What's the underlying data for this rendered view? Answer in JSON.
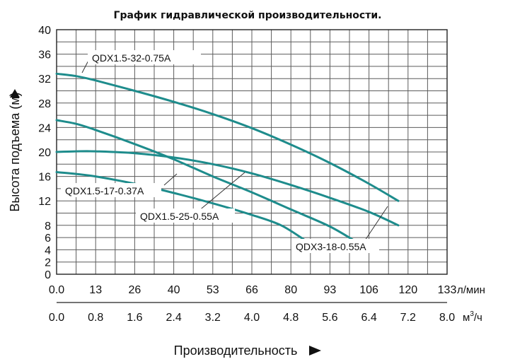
{
  "chart_data": {
    "type": "line",
    "title": "График гидравлической производительности.",
    "ylabel": "Высота подъема (м)",
    "xlabel": "Производительность",
    "ylim": [
      0,
      40
    ],
    "y_ticks": [
      "0",
      "2",
      "4",
      "6",
      "8",
      "12",
      "16",
      "20",
      "24",
      "28",
      "32",
      "36",
      "40"
    ],
    "x_ticks_lmin": [
      "0.0",
      "13",
      "26",
      "40",
      "53",
      "66",
      "80",
      "93",
      "106",
      "120",
      "133"
    ],
    "x_unit_lmin": "л/мин",
    "x_ticks_m3h": [
      "0.0",
      "0.8",
      "1.6",
      "2.4",
      "3.2",
      "4.0",
      "4.8",
      "5.6",
      "6.4",
      "7.2",
      "8.0"
    ],
    "x_unit_m3h": "м³/ч",
    "x_unit_m3h_base": "м",
    "x_unit_m3h_sup": "3",
    "x_unit_m3h_tail": "/ч",
    "xlim_m3h": [
      0,
      8.0
    ],
    "grid": true,
    "series": [
      {
        "name": "QDX1.5-32-0.75A",
        "color": "#1e8c8c",
        "points": [
          [
            0,
            32.8
          ],
          [
            0.4,
            32.4
          ],
          [
            0.8,
            31.7
          ],
          [
            1.6,
            30.0
          ],
          [
            2.4,
            28.2
          ],
          [
            3.2,
            26.2
          ],
          [
            4.0,
            23.9
          ],
          [
            4.8,
            21.2
          ],
          [
            5.6,
            18.2
          ],
          [
            6.4,
            14.8
          ],
          [
            7.0,
            12.0
          ]
        ]
      },
      {
        "name": "QDX1.5-25-0.55A",
        "color": "#1e8c8c",
        "points": [
          [
            0,
            25.2
          ],
          [
            0.4,
            24.6
          ],
          [
            0.8,
            23.6
          ],
          [
            1.6,
            21.3
          ],
          [
            2.4,
            18.8
          ],
          [
            3.2,
            16.0
          ],
          [
            4.0,
            13.4
          ],
          [
            4.8,
            10.6
          ],
          [
            5.6,
            7.8
          ],
          [
            6.2,
            5.0
          ]
        ]
      },
      {
        "name": "QDX3-18-0.55A",
        "color": "#1e8c8c",
        "points": [
          [
            0,
            20.0
          ],
          [
            0.4,
            20.1
          ],
          [
            0.8,
            20.1
          ],
          [
            1.6,
            19.8
          ],
          [
            2.4,
            19.1
          ],
          [
            3.2,
            18.0
          ],
          [
            4.0,
            16.5
          ],
          [
            4.8,
            14.6
          ],
          [
            5.6,
            12.5
          ],
          [
            6.4,
            10.2
          ],
          [
            7.0,
            8.0
          ]
        ]
      },
      {
        "name": "QDX1.5-17-0.37A",
        "color": "#1e8c8c",
        "points": [
          [
            0,
            16.7
          ],
          [
            0.4,
            16.4
          ],
          [
            0.8,
            16.0
          ],
          [
            1.6,
            14.8
          ],
          [
            2.4,
            13.3
          ],
          [
            3.2,
            11.6
          ],
          [
            4.0,
            9.7
          ],
          [
            4.6,
            8.0
          ],
          [
            5.1,
            5.5
          ]
        ]
      }
    ]
  }
}
